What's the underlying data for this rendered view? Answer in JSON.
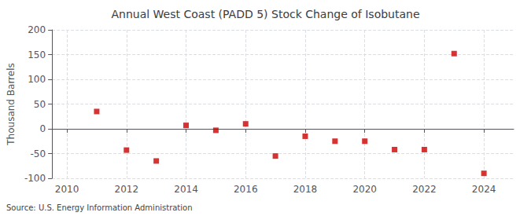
{
  "chart_data": {
    "type": "scatter",
    "title": "Annual West Coast (PADD 5) Stock Change of Isobutane",
    "ylabel": "Thousand Barrels",
    "source": "Source: U.S. Energy Information Administration",
    "x": [
      2011,
      2012,
      2013,
      2014,
      2015,
      2016,
      2017,
      2018,
      2019,
      2020,
      2021,
      2022,
      2023,
      2024
    ],
    "values": [
      35,
      -43,
      -65,
      7,
      -3,
      10,
      -55,
      -15,
      -25,
      -25,
      -42,
      -42,
      152,
      -90
    ],
    "color": "#cc0000",
    "marker": "square",
    "xlim": [
      2009.5,
      2025.0
    ],
    "xticks": [
      2010,
      2012,
      2014,
      2016,
      2018,
      2020,
      2022,
      2024
    ],
    "ylim": [
      -100,
      200
    ],
    "yticks": [
      -100,
      -50,
      0,
      50,
      100,
      150,
      200
    ],
    "grid": true
  }
}
